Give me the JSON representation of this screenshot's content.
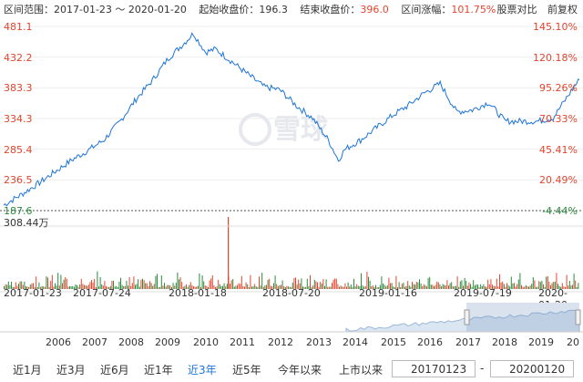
{
  "header": {
    "range_label": "区间范围：",
    "range_value": "2017-01-23 ～ 2020-01-20",
    "start_close_label": "起始收盘价：",
    "start_close_value": "196.3",
    "end_close_label": "结束收盘价：",
    "end_close_value": "396.0",
    "change_label": "区间涨幅：",
    "change_value": "101.75%",
    "compare_button": "股票对比",
    "adjust_button": "前复权"
  },
  "watermark": "雪球",
  "colors": {
    "up": "#e2452e",
    "down": "#2a8c3c",
    "line": "#1d74d8",
    "accent": "#1d74d8"
  },
  "chart_data": {
    "type": "line",
    "x_ticks": [
      "2017-01-23",
      "2017-07-24",
      "2018-01-18",
      "2018-07-20",
      "2019-01-16",
      "2019-07-19",
      "2020-01-20"
    ],
    "y_ticks_left": [
      "481.1",
      "432.2",
      "383.3",
      "334.3",
      "285.4",
      "236.5",
      "187.6"
    ],
    "y_ticks_right": [
      "145.10%",
      "120.18%",
      "95.26%",
      "70.33%",
      "45.41%",
      "20.49%",
      "-4.44%"
    ],
    "ylim": [
      187.6,
      481.1
    ],
    "volume_label": "308.44万",
    "series": [
      {
        "x": [
          "2017-01-23",
          "2017-03-01",
          "2017-04-01",
          "2017-05-01",
          "2017-06-01",
          "2017-07-01",
          "2017-08-01",
          "2017-09-01",
          "2017-10-01",
          "2017-11-01",
          "2017-12-01",
          "2018-01-01",
          "2018-01-18",
          "2018-02-10",
          "2018-03-01",
          "2018-04-01",
          "2018-05-01",
          "2018-06-01",
          "2018-07-01",
          "2018-08-01",
          "2018-09-01",
          "2018-10-01",
          "2018-10-20",
          "2018-11-01",
          "2018-12-01",
          "2019-01-01",
          "2019-02-01",
          "2019-03-01",
          "2019-04-01",
          "2019-05-01",
          "2019-06-01",
          "2019-07-01",
          "2019-08-01",
          "2019-09-01",
          "2019-10-01",
          "2019-11-01",
          "2019-12-01",
          "2020-01-10",
          "2020-01-20"
        ],
        "y": [
          196.3,
          215,
          232,
          250,
          268,
          283,
          300,
          330,
          365,
          395,
          430,
          455,
          470,
          440,
          445,
          425,
          405,
          385,
          380,
          355,
          335,
          300,
          268,
          285,
          300,
          320,
          340,
          355,
          375,
          390,
          345,
          348,
          360,
          330,
          330,
          330,
          335,
          385,
          396.0
        ]
      }
    ],
    "navigator_years": [
      "2006",
      "2007",
      "2008",
      "2009",
      "2010",
      "2011",
      "2012",
      "2013",
      "2014",
      "2015",
      "2016",
      "2017",
      "2018",
      "2019",
      "20"
    ]
  },
  "range_buttons": [
    "近1月",
    "近3月",
    "近6月",
    "近1年",
    "近3年",
    "近5年",
    "今年以来",
    "上市以来"
  ],
  "active_range": "近3年",
  "date_start": "20170123",
  "date_end": "20200120",
  "date_sep": "-"
}
